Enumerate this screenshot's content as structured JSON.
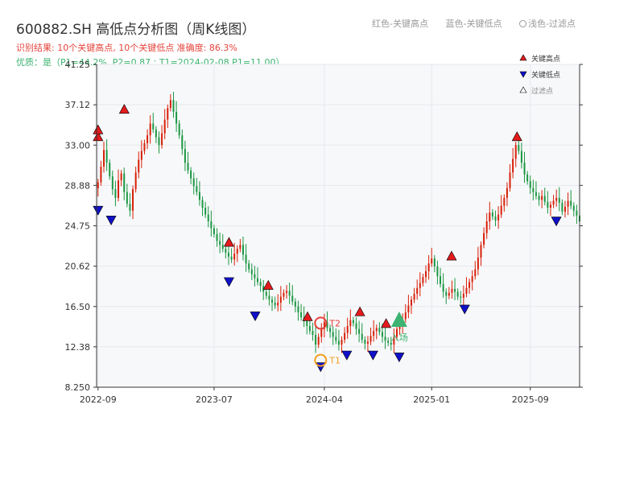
{
  "header": {
    "title": "600882.SH 高低点分析图（周K线图）",
    "result_line": "识别结果: 10个关键高点, 10个关键低点   准确度: 86.3%",
    "quality_line": "优质：是（P1=44.2%, P2=0.87 ; T1=2024-02-08 P1=11.00）",
    "legend_red": "红色-关键高点",
    "legend_blue": "蓝色-关键低点",
    "legend_light": "浅色-过滤点"
  },
  "colors": {
    "up": "#d81e06",
    "down": "#1a9641",
    "high": "#e41a1c",
    "low": "#1010c8",
    "accent": "#e5443c",
    "quality": "#3cb371",
    "t1": "#f0a020"
  },
  "chart_data": {
    "type": "candlestick",
    "title": "600882.SH 高低点分析图（周K线图）",
    "y_ticks": [
      "8.250",
      "12.38",
      "16.50",
      "20.62",
      "24.75",
      "28.88",
      "33.00",
      "37.12",
      "41.25"
    ],
    "ylim": [
      8.25,
      41.25
    ],
    "x_ticks": [
      "2022-09",
      "2023-07",
      "2024-04",
      "2025-01",
      "2025-09"
    ],
    "legend": [
      "关键高点",
      "关键低点",
      "过滤点"
    ],
    "grid": true,
    "legend_position": "top-right",
    "closes": [
      29.2,
      30.8,
      32.5,
      31.2,
      29.8,
      28.5,
      27.6,
      29.4,
      30.1,
      28.2,
      27.0,
      26.3,
      28.5,
      30.2,
      31.5,
      32.4,
      33.2,
      34.0,
      35.2,
      34.6,
      33.8,
      33.0,
      34.2,
      35.6,
      36.8,
      37.6,
      36.4,
      35.2,
      34.0,
      32.6,
      31.2,
      30.4,
      29.6,
      28.8,
      28.2,
      27.4,
      26.6,
      25.9,
      25.2,
      24.5,
      23.9,
      23.2,
      22.8,
      22.4,
      22.0,
      21.6,
      21.3,
      21.9,
      22.4,
      22.8,
      21.8,
      20.9,
      20.3,
      19.8,
      19.4,
      19.0,
      18.6,
      18.0,
      17.6,
      17.2,
      16.9,
      16.6,
      16.9,
      17.5,
      17.9,
      18.1,
      17.6,
      17.0,
      16.5,
      15.9,
      15.4,
      15.0,
      14.5,
      14.0,
      13.6,
      12.6,
      13.4,
      14.2,
      14.9,
      14.3,
      13.9,
      13.4,
      13.0,
      12.6,
      13.1,
      13.8,
      14.5,
      15.1,
      14.8,
      14.2,
      13.7,
      13.1,
      12.7,
      12.9,
      13.5,
      14.0,
      14.3,
      13.9,
      13.4,
      13.0,
      12.8,
      12.6,
      13.4,
      14.2,
      14.6,
      15.2,
      15.9,
      16.6,
      17.2,
      17.8,
      18.4,
      18.9,
      19.5,
      20.1,
      20.9,
      21.4,
      20.6,
      19.6,
      18.8,
      18.0,
      17.6,
      17.9,
      18.3,
      18.0,
      17.5,
      17.4,
      17.8,
      18.4,
      19.0,
      19.6,
      20.3,
      21.5,
      22.8,
      24.0,
      25.2,
      26.1,
      25.7,
      25.3,
      25.9,
      26.8,
      27.6,
      28.6,
      30.2,
      31.6,
      33.0,
      32.4,
      31.2,
      30.0,
      29.3,
      28.6,
      28.2,
      27.8,
      27.4,
      27.8,
      27.2,
      26.6,
      26.9,
      27.3,
      27.6,
      27.1,
      26.2,
      26.7,
      27.3,
      26.8,
      26.3,
      25.8,
      25.2
    ],
    "key_highs": [
      {
        "date": "2022-09",
        "value": 33.2
      },
      {
        "date": "2022-09",
        "value": 33.9
      },
      {
        "date": "2022-11",
        "value": 36.0
      },
      {
        "date": "2023-07",
        "value": 22.4
      },
      {
        "date": "2023-10",
        "value": 18.0
      },
      {
        "date": "2024-01",
        "value": 14.8
      },
      {
        "date": "2024-05",
        "value": 15.3
      },
      {
        "date": "2024-07",
        "value": 14.1
      },
      {
        "date": "2024-12",
        "value": 21.0
      },
      {
        "date": "2025-05",
        "value": 33.2
      }
    ],
    "key_lows": [
      {
        "date": "2022-09",
        "value": 27.0
      },
      {
        "date": "2022-10",
        "value": 26.0
      },
      {
        "date": "2023-07",
        "value": 19.7
      },
      {
        "date": "2023-09",
        "value": 16.2
      },
      {
        "date": "2024-02",
        "value": 11.0
      },
      {
        "date": "2024-04",
        "value": 12.2
      },
      {
        "date": "2024-06",
        "value": 12.2
      },
      {
        "date": "2024-08",
        "value": 12.0
      },
      {
        "date": "2025-01",
        "value": 16.9
      },
      {
        "date": "2025-08",
        "value": 25.9
      }
    ],
    "annotations": [
      {
        "label": "T1",
        "date": "2024-02-08",
        "value": 11.0
      },
      {
        "label": "T2",
        "date": "2024-02",
        "value": 14.8
      },
      {
        "label": "入场",
        "date": "2024-08",
        "value": 15.0
      }
    ]
  }
}
